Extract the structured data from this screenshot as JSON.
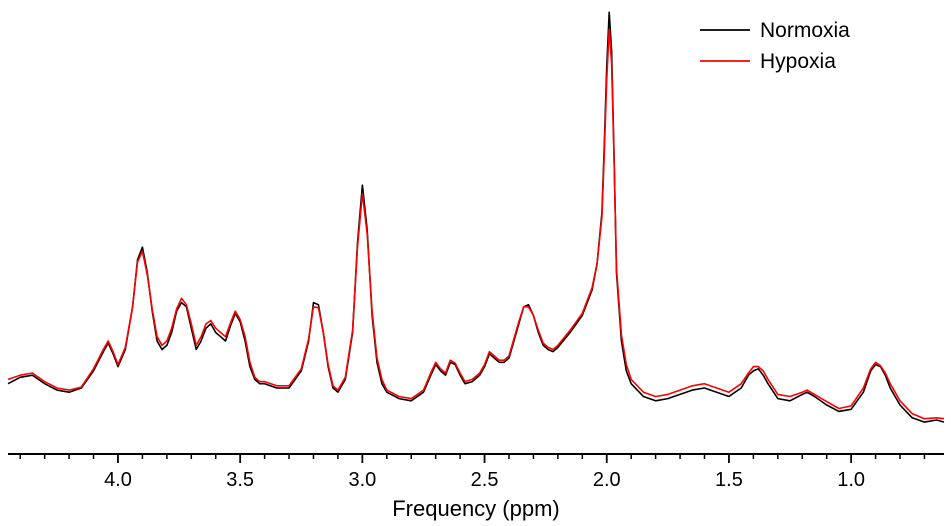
{
  "chart_data": {
    "type": "line",
    "title": "",
    "xlabel": "Frequency (ppm)",
    "ylabel": "",
    "xlim": [
      4.45,
      0.62
    ],
    "x_reversed": true,
    "ylim": [
      -0.04,
      1.0
    ],
    "grid": false,
    "legend_position": "top-right",
    "x_ticks": [
      4.0,
      3.5,
      3.0,
      2.5,
      2.0,
      1.5,
      1.0
    ],
    "x_tick_labels": [
      "4.0",
      "3.5",
      "3.0",
      "2.5",
      "2.0",
      "1.5",
      "1.0"
    ],
    "x_minor_step": 0.1,
    "colors": {
      "normoxia": "#000000",
      "hypoxia": "#ff0000",
      "axis": "#000000"
    },
    "series": [
      {
        "name": "Normoxia",
        "color": "#000000",
        "x": [
          4.45,
          4.4,
          4.35,
          4.3,
          4.25,
          4.2,
          4.15,
          4.1,
          4.06,
          4.04,
          4.02,
          4.0,
          3.97,
          3.94,
          3.92,
          3.9,
          3.88,
          3.86,
          3.84,
          3.82,
          3.8,
          3.78,
          3.76,
          3.74,
          3.72,
          3.7,
          3.68,
          3.66,
          3.64,
          3.62,
          3.6,
          3.58,
          3.56,
          3.54,
          3.52,
          3.5,
          3.48,
          3.46,
          3.44,
          3.42,
          3.4,
          3.35,
          3.3,
          3.25,
          3.22,
          3.2,
          3.18,
          3.16,
          3.14,
          3.12,
          3.1,
          3.07,
          3.04,
          3.02,
          3.0,
          2.98,
          2.96,
          2.94,
          2.92,
          2.9,
          2.85,
          2.8,
          2.75,
          2.72,
          2.7,
          2.68,
          2.66,
          2.64,
          2.62,
          2.6,
          2.58,
          2.55,
          2.52,
          2.5,
          2.48,
          2.46,
          2.44,
          2.42,
          2.4,
          2.38,
          2.36,
          2.34,
          2.32,
          2.3,
          2.28,
          2.26,
          2.24,
          2.22,
          2.2,
          2.15,
          2.1,
          2.06,
          2.04,
          2.02,
          2.01,
          2.0,
          1.99,
          1.98,
          1.97,
          1.96,
          1.94,
          1.92,
          1.9,
          1.85,
          1.8,
          1.75,
          1.7,
          1.65,
          1.6,
          1.55,
          1.5,
          1.45,
          1.42,
          1.4,
          1.38,
          1.36,
          1.34,
          1.3,
          1.25,
          1.2,
          1.18,
          1.15,
          1.1,
          1.05,
          1.0,
          0.95,
          0.92,
          0.9,
          0.88,
          0.86,
          0.84,
          0.8,
          0.75,
          0.7,
          0.65,
          0.62
        ],
        "y": [
          0.12,
          0.135,
          0.14,
          0.12,
          0.105,
          0.1,
          0.11,
          0.15,
          0.195,
          0.215,
          0.19,
          0.16,
          0.2,
          0.3,
          0.41,
          0.44,
          0.38,
          0.29,
          0.22,
          0.2,
          0.21,
          0.24,
          0.29,
          0.31,
          0.3,
          0.25,
          0.2,
          0.22,
          0.25,
          0.26,
          0.24,
          0.23,
          0.22,
          0.255,
          0.285,
          0.265,
          0.22,
          0.16,
          0.13,
          0.12,
          0.12,
          0.11,
          0.11,
          0.15,
          0.22,
          0.31,
          0.305,
          0.24,
          0.16,
          0.11,
          0.1,
          0.13,
          0.24,
          0.45,
          0.585,
          0.48,
          0.28,
          0.17,
          0.12,
          0.1,
          0.085,
          0.08,
          0.1,
          0.14,
          0.165,
          0.15,
          0.14,
          0.17,
          0.165,
          0.14,
          0.12,
          0.125,
          0.14,
          0.16,
          0.19,
          0.18,
          0.17,
          0.17,
          0.18,
          0.22,
          0.26,
          0.3,
          0.305,
          0.28,
          0.24,
          0.21,
          0.2,
          0.195,
          0.205,
          0.24,
          0.28,
          0.34,
          0.4,
          0.52,
          0.68,
          0.86,
          0.99,
          0.9,
          0.65,
          0.38,
          0.22,
          0.15,
          0.12,
          0.09,
          0.08,
          0.085,
          0.095,
          0.105,
          0.11,
          0.1,
          0.09,
          0.11,
          0.14,
          0.15,
          0.155,
          0.14,
          0.12,
          0.085,
          0.08,
          0.095,
          0.1,
          0.09,
          0.07,
          0.055,
          0.06,
          0.1,
          0.15,
          0.165,
          0.16,
          0.14,
          0.11,
          0.07,
          0.04,
          0.03,
          0.035,
          0.03
        ]
      },
      {
        "name": "Hypoxia",
        "color": "#ff0000",
        "x": [
          4.45,
          4.4,
          4.35,
          4.3,
          4.25,
          4.2,
          4.15,
          4.1,
          4.06,
          4.04,
          4.02,
          4.0,
          3.97,
          3.94,
          3.92,
          3.9,
          3.88,
          3.86,
          3.84,
          3.82,
          3.8,
          3.78,
          3.76,
          3.74,
          3.72,
          3.7,
          3.68,
          3.66,
          3.64,
          3.62,
          3.6,
          3.58,
          3.56,
          3.54,
          3.52,
          3.5,
          3.48,
          3.46,
          3.44,
          3.42,
          3.4,
          3.35,
          3.3,
          3.25,
          3.22,
          3.2,
          3.18,
          3.16,
          3.14,
          3.12,
          3.1,
          3.07,
          3.04,
          3.02,
          3.0,
          2.98,
          2.96,
          2.94,
          2.92,
          2.9,
          2.85,
          2.8,
          2.75,
          2.72,
          2.7,
          2.68,
          2.66,
          2.64,
          2.62,
          2.6,
          2.58,
          2.55,
          2.52,
          2.5,
          2.48,
          2.46,
          2.44,
          2.42,
          2.4,
          2.38,
          2.36,
          2.34,
          2.32,
          2.3,
          2.28,
          2.26,
          2.24,
          2.22,
          2.2,
          2.15,
          2.1,
          2.06,
          2.04,
          2.02,
          2.01,
          2.0,
          1.99,
          1.98,
          1.97,
          1.96,
          1.94,
          1.92,
          1.9,
          1.85,
          1.8,
          1.75,
          1.7,
          1.65,
          1.6,
          1.55,
          1.5,
          1.45,
          1.42,
          1.4,
          1.38,
          1.36,
          1.34,
          1.3,
          1.25,
          1.2,
          1.18,
          1.15,
          1.1,
          1.05,
          1.0,
          0.95,
          0.92,
          0.9,
          0.88,
          0.86,
          0.84,
          0.8,
          0.75,
          0.7,
          0.65,
          0.62
        ],
        "y": [
          0.13,
          0.14,
          0.145,
          0.125,
          0.11,
          0.105,
          0.112,
          0.155,
          0.2,
          0.22,
          0.195,
          0.165,
          0.205,
          0.3,
          0.405,
          0.43,
          0.375,
          0.295,
          0.23,
          0.21,
          0.22,
          0.25,
          0.295,
          0.32,
          0.305,
          0.26,
          0.21,
          0.23,
          0.26,
          0.268,
          0.25,
          0.24,
          0.23,
          0.262,
          0.29,
          0.27,
          0.23,
          0.17,
          0.135,
          0.125,
          0.125,
          0.115,
          0.115,
          0.155,
          0.225,
          0.3,
          0.298,
          0.24,
          0.165,
          0.115,
          0.105,
          0.135,
          0.245,
          0.44,
          0.565,
          0.47,
          0.29,
          0.18,
          0.13,
          0.105,
          0.09,
          0.085,
          0.105,
          0.145,
          0.17,
          0.155,
          0.145,
          0.175,
          0.168,
          0.145,
          0.125,
          0.13,
          0.145,
          0.165,
          0.195,
          0.185,
          0.175,
          0.175,
          0.185,
          0.225,
          0.265,
          0.3,
          0.3,
          0.28,
          0.245,
          0.215,
          0.205,
          0.2,
          0.21,
          0.245,
          0.285,
          0.345,
          0.4,
          0.51,
          0.66,
          0.83,
          0.95,
          0.87,
          0.64,
          0.39,
          0.235,
          0.165,
          0.13,
          0.1,
          0.09,
          0.095,
          0.105,
          0.115,
          0.12,
          0.11,
          0.1,
          0.12,
          0.145,
          0.16,
          0.16,
          0.15,
          0.13,
          0.095,
          0.09,
          0.1,
          0.105,
          0.095,
          0.078,
          0.062,
          0.068,
          0.11,
          0.155,
          0.17,
          0.162,
          0.145,
          0.12,
          0.08,
          0.05,
          0.038,
          0.04,
          0.038
        ]
      }
    ]
  }
}
